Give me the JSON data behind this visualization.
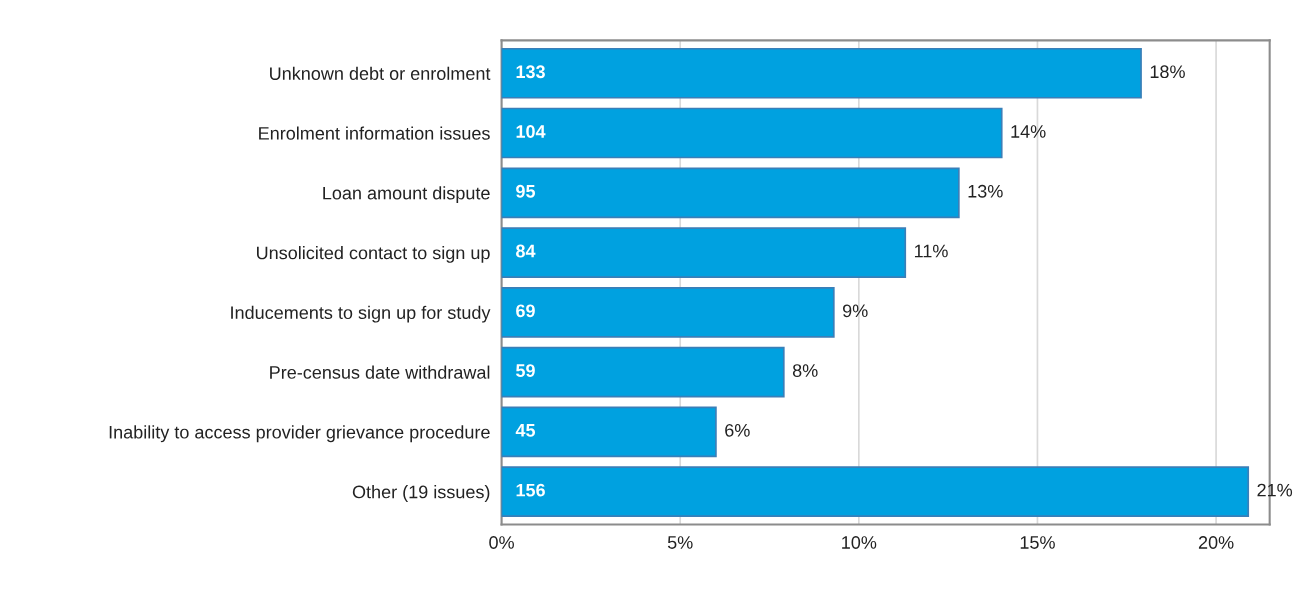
{
  "chart_data": {
    "type": "bar",
    "orientation": "horizontal",
    "categories": [
      "Unknown debt or enrolment",
      "Enrolment information issues",
      "Loan amount dispute",
      "Unsolicited contact to sign up",
      "Inducements to sign up for study",
      "Pre-census date withdrawal",
      "Inability to access provider grievance procedure",
      "Other (19 issues)"
    ],
    "values": [
      17.9,
      14.0,
      12.8,
      11.3,
      9.3,
      7.9,
      6.0,
      20.9
    ],
    "value_labels": [
      "18%",
      "14%",
      "13%",
      "11%",
      "9%",
      "8%",
      "6%",
      "21%"
    ],
    "color": "#00a1e0",
    "xlim": [
      0,
      21.5
    ],
    "xticks": [
      {
        "value": 0,
        "label": "0%"
      },
      {
        "value": 5,
        "label": "5%"
      },
      {
        "value": 10,
        "label": "10%"
      },
      {
        "value": 15,
        "label": "15%"
      },
      {
        "value": 20,
        "label": "20%"
      }
    ],
    "grid": "x",
    "annotations": [
      {
        "text": "133",
        "y": "Unknown debt or enrolment"
      },
      {
        "text": "104",
        "y": "Enrolment information issues"
      },
      {
        "text": "95",
        "y": "Loan amount dispute"
      },
      {
        "text": "84",
        "y": "Unsolicited contact to sign up"
      },
      {
        "text": "69",
        "y": "Inducements to sign up for study"
      },
      {
        "text": "59",
        "y": "Pre-census date withdrawal"
      },
      {
        "text": "45",
        "y": "Inability to access provider grievance procedure"
      },
      {
        "text": "156",
        "y": "Other (19 issues)"
      }
    ]
  }
}
